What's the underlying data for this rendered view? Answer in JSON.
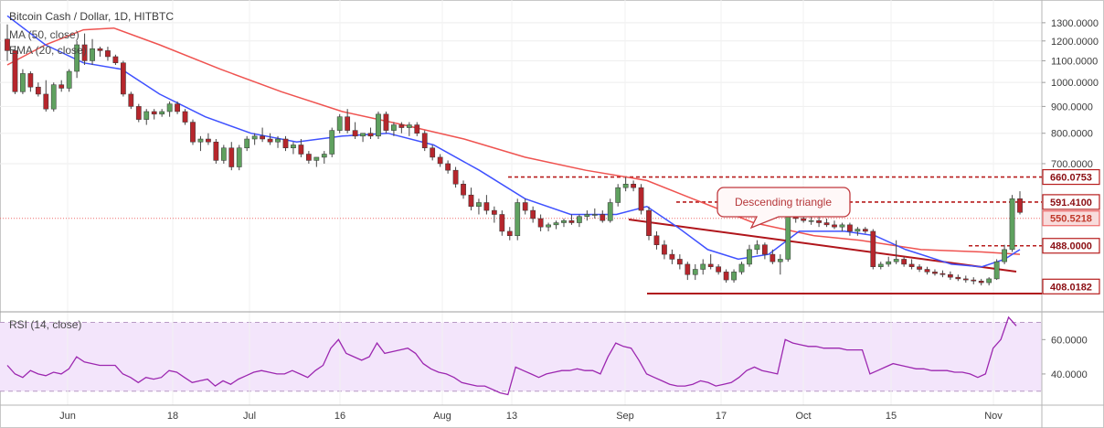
{
  "chart_data": {
    "type": "candlestick",
    "title": "Bitcoin Cash / Dollar, 1D, HITBTC",
    "indicators": [
      "MA (50, close)",
      "EMA (20, close)"
    ],
    "x_ticks": [
      "Jun",
      "18",
      "Jul",
      "16",
      "Aug",
      "13",
      "Sep",
      "17",
      "Oct",
      "15",
      "Nov"
    ],
    "price_axis": {
      "ticks": [
        "1300.0000",
        "1200.0000",
        "1100.0000",
        "1000.0000",
        "900.0000",
        "800.0000",
        "700.0000"
      ],
      "scale": "log",
      "range": [
        380,
        1380
      ]
    },
    "price_levels": [
      {
        "label": "660.0753",
        "value": 660.0753,
        "color": "#b71c1c",
        "style": "dashed"
      },
      {
        "label": "591.4100",
        "value": 591.41,
        "color": "#b71c1c",
        "style": "dashed"
      },
      {
        "label": "550.5218",
        "value": 550.5218,
        "color": "#ef6c6c",
        "style": "dotted"
      },
      {
        "label": "488.0000",
        "value": 488,
        "color": "#b71c1c",
        "style": "dashed"
      },
      {
        "label": "408.0182",
        "value": 408.0182,
        "color": "#b71c1c",
        "style": "solid"
      }
    ],
    "annotation": "Descending triangle",
    "candles": [
      [
        1210,
        1290,
        1100,
        1150
      ],
      [
        1150,
        1175,
        950,
        960
      ],
      [
        960,
        1060,
        950,
        1040
      ],
      [
        1040,
        1050,
        960,
        980
      ],
      [
        980,
        1000,
        940,
        950
      ],
      [
        950,
        1010,
        880,
        890
      ],
      [
        890,
        1000,
        880,
        990
      ],
      [
        990,
        1010,
        960,
        975
      ],
      [
        975,
        1060,
        960,
        1050
      ],
      [
        1050,
        1200,
        1020,
        1180
      ],
      [
        1180,
        1240,
        1080,
        1100
      ],
      [
        1100,
        1210,
        1080,
        1160
      ],
      [
        1160,
        1170,
        1120,
        1150
      ],
      [
        1150,
        1170,
        1100,
        1120
      ],
      [
        1120,
        1130,
        1080,
        1090
      ],
      [
        1090,
        1100,
        940,
        950
      ],
      [
        950,
        960,
        890,
        900
      ],
      [
        900,
        910,
        840,
        850
      ],
      [
        850,
        890,
        830,
        880
      ],
      [
        880,
        890,
        850,
        870
      ],
      [
        870,
        890,
        860,
        880
      ],
      [
        880,
        920,
        860,
        910
      ],
      [
        910,
        920,
        870,
        880
      ],
      [
        880,
        890,
        830,
        840
      ],
      [
        840,
        850,
        760,
        770
      ],
      [
        770,
        790,
        740,
        780
      ],
      [
        780,
        800,
        760,
        770
      ],
      [
        770,
        780,
        700,
        710
      ],
      [
        710,
        760,
        700,
        750
      ],
      [
        750,
        770,
        680,
        690
      ],
      [
        690,
        760,
        680,
        750
      ],
      [
        750,
        790,
        740,
        780
      ],
      [
        780,
        800,
        760,
        790
      ],
      [
        790,
        820,
        770,
        780
      ],
      [
        780,
        800,
        760,
        770
      ],
      [
        770,
        790,
        750,
        780
      ],
      [
        780,
        790,
        740,
        750
      ],
      [
        750,
        770,
        730,
        760
      ],
      [
        760,
        780,
        720,
        730
      ],
      [
        730,
        740,
        700,
        710
      ],
      [
        710,
        720,
        690,
        720
      ],
      [
        720,
        740,
        700,
        730
      ],
      [
        730,
        820,
        720,
        810
      ],
      [
        810,
        870,
        800,
        860
      ],
      [
        860,
        890,
        800,
        810
      ],
      [
        810,
        840,
        780,
        790
      ],
      [
        790,
        800,
        770,
        800
      ],
      [
        800,
        820,
        780,
        790
      ],
      [
        790,
        880,
        780,
        870
      ],
      [
        870,
        880,
        800,
        810
      ],
      [
        810,
        840,
        790,
        830
      ],
      [
        830,
        840,
        800,
        820
      ],
      [
        820,
        840,
        790,
        830
      ],
      [
        830,
        840,
        790,
        800
      ],
      [
        800,
        810,
        740,
        750
      ],
      [
        750,
        760,
        710,
        720
      ],
      [
        720,
        730,
        690,
        700
      ],
      [
        700,
        710,
        670,
        680
      ],
      [
        680,
        690,
        630,
        640
      ],
      [
        640,
        650,
        600,
        610
      ],
      [
        610,
        630,
        570,
        580
      ],
      [
        580,
        600,
        560,
        590
      ],
      [
        590,
        610,
        560,
        570
      ],
      [
        570,
        580,
        540,
        560
      ],
      [
        560,
        570,
        510,
        520
      ],
      [
        520,
        530,
        500,
        510
      ],
      [
        510,
        600,
        500,
        590
      ],
      [
        590,
        600,
        560,
        570
      ],
      [
        570,
        580,
        540,
        550
      ],
      [
        550,
        560,
        520,
        530
      ],
      [
        530,
        540,
        520,
        535
      ],
      [
        535,
        545,
        525,
        540
      ],
      [
        540,
        550,
        530,
        545
      ],
      [
        545,
        560,
        535,
        540
      ],
      [
        540,
        560,
        530,
        555
      ],
      [
        555,
        570,
        545,
        560
      ],
      [
        560,
        575,
        550,
        560
      ],
      [
        560,
        570,
        540,
        545
      ],
      [
        545,
        600,
        540,
        590
      ],
      [
        590,
        640,
        580,
        630
      ],
      [
        630,
        660,
        620,
        640
      ],
      [
        640,
        650,
        620,
        630
      ],
      [
        630,
        640,
        560,
        570
      ],
      [
        570,
        580,
        500,
        510
      ],
      [
        510,
        520,
        480,
        490
      ],
      [
        490,
        500,
        460,
        470
      ],
      [
        470,
        480,
        450,
        460
      ],
      [
        460,
        470,
        440,
        450
      ],
      [
        450,
        455,
        420,
        430
      ],
      [
        430,
        450,
        420,
        440
      ],
      [
        440,
        460,
        430,
        450
      ],
      [
        450,
        470,
        440,
        445
      ],
      [
        445,
        450,
        430,
        435
      ],
      [
        435,
        440,
        415,
        420
      ],
      [
        420,
        440,
        415,
        435
      ],
      [
        435,
        455,
        430,
        450
      ],
      [
        450,
        490,
        445,
        480
      ],
      [
        480,
        500,
        470,
        490
      ],
      [
        490,
        495,
        460,
        470
      ],
      [
        470,
        480,
        450,
        455
      ],
      [
        455,
        470,
        430,
        460
      ],
      [
        460,
        580,
        455,
        570
      ],
      [
        570,
        585,
        540,
        550
      ],
      [
        550,
        560,
        540,
        545
      ],
      [
        545,
        555,
        535,
        545
      ],
      [
        545,
        555,
        530,
        540
      ],
      [
        540,
        550,
        530,
        535
      ],
      [
        535,
        545,
        525,
        530
      ],
      [
        530,
        540,
        520,
        535
      ],
      [
        535,
        540,
        510,
        520
      ],
      [
        520,
        530,
        510,
        525
      ],
      [
        525,
        530,
        515,
        520
      ],
      [
        520,
        525,
        440,
        445
      ],
      [
        445,
        455,
        440,
        450
      ],
      [
        450,
        465,
        445,
        455
      ],
      [
        455,
        500,
        450,
        460
      ],
      [
        460,
        465,
        445,
        450
      ],
      [
        450,
        460,
        440,
        445
      ],
      [
        445,
        450,
        435,
        440
      ],
      [
        440,
        445,
        430,
        435
      ],
      [
        435,
        440,
        428,
        432
      ],
      [
        432,
        438,
        425,
        430
      ],
      [
        430,
        436,
        420,
        425
      ],
      [
        425,
        430,
        418,
        422
      ],
      [
        422,
        428,
        415,
        420
      ],
      [
        420,
        425,
        412,
        418
      ],
      [
        418,
        422,
        410,
        415
      ],
      [
        415,
        425,
        410,
        422
      ],
      [
        422,
        460,
        420,
        455
      ],
      [
        455,
        490,
        450,
        480
      ],
      [
        480,
        610,
        475,
        600
      ],
      [
        600,
        620,
        560,
        565
      ]
    ],
    "ma50": [
      [
        0,
        1080
      ],
      [
        5,
        1180
      ],
      [
        10,
        1260
      ],
      [
        14,
        1270
      ],
      [
        20,
        1180
      ],
      [
        28,
        1060
      ],
      [
        36,
        960
      ],
      [
        44,
        880
      ],
      [
        52,
        830
      ],
      [
        60,
        780
      ],
      [
        68,
        720
      ],
      [
        76,
        680
      ],
      [
        84,
        650
      ],
      [
        90,
        600
      ],
      [
        98,
        540
      ],
      [
        106,
        510
      ],
      [
        112,
        500
      ],
      [
        120,
        480
      ],
      [
        128,
        475
      ],
      [
        133,
        470
      ]
    ],
    "ema20": [
      [
        0,
        1340
      ],
      [
        5,
        1180
      ],
      [
        10,
        1090
      ],
      [
        15,
        1060
      ],
      [
        20,
        950
      ],
      [
        26,
        860
      ],
      [
        32,
        800
      ],
      [
        38,
        770
      ],
      [
        44,
        790
      ],
      [
        50,
        800
      ],
      [
        56,
        760
      ],
      [
        62,
        680
      ],
      [
        68,
        600
      ],
      [
        74,
        560
      ],
      [
        80,
        560
      ],
      [
        84,
        580
      ],
      [
        88,
        530
      ],
      [
        92,
        480
      ],
      [
        96,
        460
      ],
      [
        100,
        470
      ],
      [
        104,
        520
      ],
      [
        110,
        520
      ],
      [
        114,
        510
      ],
      [
        118,
        480
      ],
      [
        124,
        450
      ],
      [
        128,
        445
      ],
      [
        131,
        460
      ],
      [
        133,
        480
      ]
    ],
    "rsi": {
      "label": "RSI (14, close)",
      "ticks": [
        "60.0000",
        "40.0000"
      ],
      "bands": [
        30,
        70
      ],
      "range": [
        24,
        74
      ],
      "values": [
        45,
        40,
        38,
        42,
        40,
        39,
        41,
        40,
        43,
        50,
        47,
        46,
        45,
        45,
        45,
        40,
        38,
        35,
        38,
        37,
        38,
        42,
        41,
        38,
        35,
        36,
        37,
        33,
        36,
        34,
        37,
        39,
        41,
        42,
        41,
        40,
        40,
        42,
        40,
        38,
        42,
        45,
        55,
        60,
        52,
        50,
        48,
        50,
        58,
        52,
        53,
        54,
        55,
        52,
        46,
        43,
        41,
        40,
        38,
        35,
        34,
        33,
        33,
        31,
        29,
        28,
        44,
        42,
        40,
        38,
        40,
        41,
        42,
        42,
        43,
        42,
        42,
        40,
        50,
        58,
        56,
        55,
        48,
        40,
        38,
        36,
        34,
        33,
        33,
        34,
        36,
        35,
        33,
        34,
        35,
        38,
        42,
        44,
        42,
        41,
        40,
        60,
        58,
        57,
        56,
        56,
        55,
        55,
        55,
        54,
        54,
        54,
        40,
        42,
        44,
        46,
        45,
        44,
        43,
        43,
        42,
        42,
        42,
        41,
        41,
        40,
        38,
        40,
        55,
        60,
        73,
        68
      ]
    }
  }
}
